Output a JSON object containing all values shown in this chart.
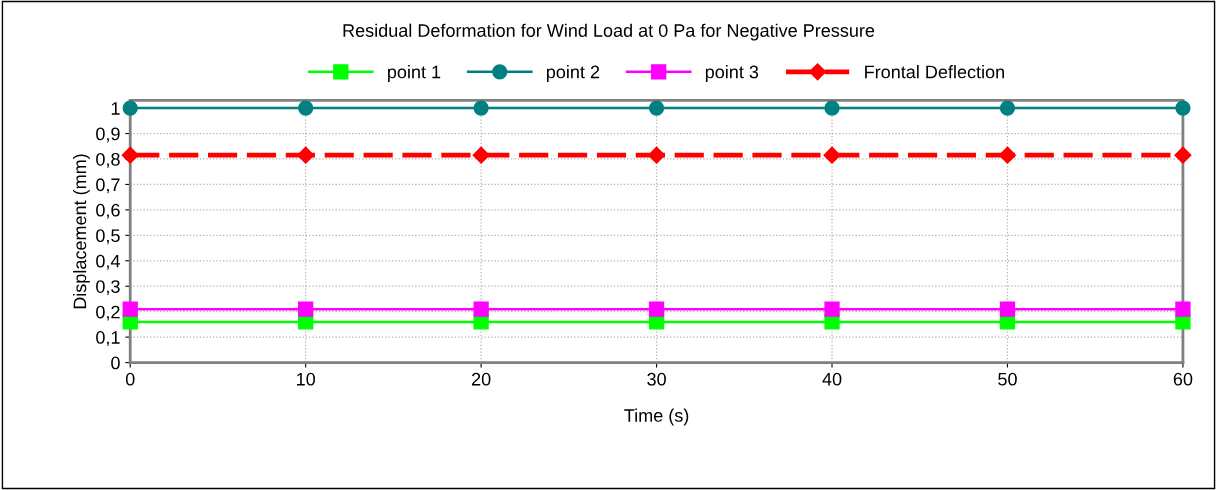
{
  "chart_data": {
    "type": "line",
    "title": "Residual Deformation for Wind Load at 0 Pa for Negative Pressure",
    "xlabel": "Time (s)",
    "ylabel": "Displacement (mm)",
    "x": [
      0,
      10,
      20,
      30,
      40,
      50,
      60
    ],
    "series": [
      {
        "name": "point 1",
        "color": "#00ff00",
        "marker": "square",
        "line_style": "solid",
        "values": [
          0.16,
          0.16,
          0.16,
          0.16,
          0.16,
          0.16,
          0.16
        ]
      },
      {
        "name": "point 2",
        "color": "#008080",
        "marker": "circle",
        "line_style": "solid",
        "values": [
          1.0,
          1.0,
          1.0,
          1.0,
          1.0,
          1.0,
          1.0
        ]
      },
      {
        "name": "point 3",
        "color": "#ff00ff",
        "marker": "square",
        "line_style": "solid",
        "values": [
          0.21,
          0.21,
          0.21,
          0.21,
          0.21,
          0.21,
          0.21
        ]
      },
      {
        "name": "Frontal Deflection",
        "color": "#ff0000",
        "marker": "diamond",
        "line_style": "dashed",
        "values": [
          0.815,
          0.815,
          0.815,
          0.815,
          0.815,
          0.815,
          0.815
        ]
      }
    ],
    "xlim": [
      0,
      60
    ],
    "xticks": [
      0,
      10,
      20,
      30,
      40,
      50,
      60
    ],
    "ylim": [
      0,
      1.03
    ],
    "yticks": [
      {
        "value": 0,
        "label": "0"
      },
      {
        "value": 0.1,
        "label": "0,1"
      },
      {
        "value": 0.2,
        "label": "0,2"
      },
      {
        "value": 0.3,
        "label": "0,3"
      },
      {
        "value": 0.4,
        "label": "0,4"
      },
      {
        "value": 0.5,
        "label": "0,5"
      },
      {
        "value": 0.6,
        "label": "0,6"
      },
      {
        "value": 0.7,
        "label": "0,7"
      },
      {
        "value": 0.8,
        "label": "0,8"
      },
      {
        "value": 0.9,
        "label": "0,9"
      },
      {
        "value": 1,
        "label": "1"
      }
    ],
    "grid": true,
    "legend": "top"
  }
}
